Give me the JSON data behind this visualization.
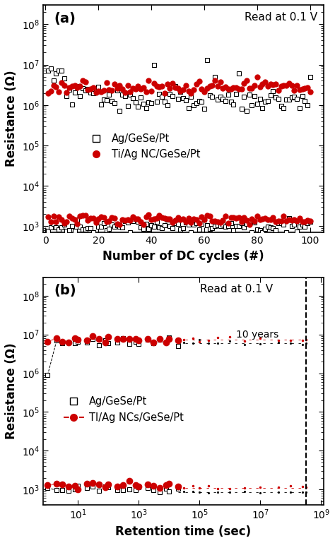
{
  "panel_a": {
    "title_text": "Read at 0.1 V",
    "xlabel": "Number of DC cycles (#)",
    "ylabel": "Resistance (Ω)",
    "xlim": [
      -1,
      105
    ],
    "ylim_lo": 700,
    "ylim_hi": 300000000.0,
    "label_a": "(a)",
    "legend1": "Ag/GeSe/Pt",
    "legend2": "Ti/Ag NC/GeSe/Pt"
  },
  "panel_b": {
    "title_text": "Read at 0.1 V",
    "xlabel": "Retention time (sec)",
    "ylabel": "Resistance (Ω)",
    "label_b": "(b)",
    "legend1": "Ag/GeSe/Pt",
    "legend2": "TI/Ag NCs/GeSe/Pt",
    "ten_years_sec": 315000000.0,
    "annotation": "10 years",
    "xlim_lo": 0.7,
    "xlim_hi": 1200000000.0,
    "ylim_lo": 400,
    "ylim_hi": 300000000.0
  },
  "colors": {
    "black": "#000000",
    "red": "#cc0000",
    "white": "#ffffff"
  }
}
